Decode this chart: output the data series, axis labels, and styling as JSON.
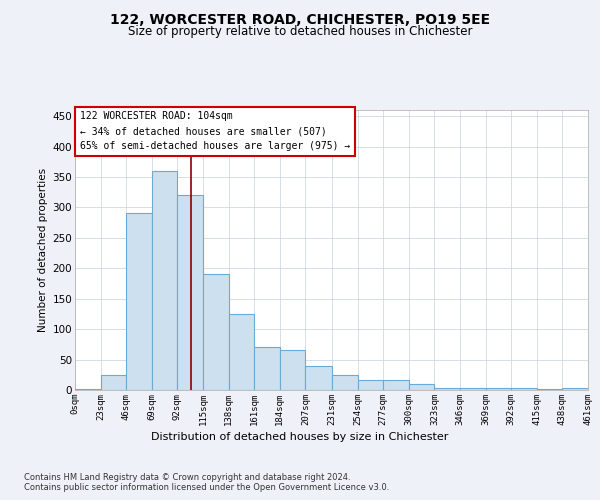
{
  "title": "122, WORCESTER ROAD, CHICHESTER, PO19 5EE",
  "subtitle": "Size of property relative to detached houses in Chichester",
  "xlabel": "Distribution of detached houses by size in Chichester",
  "ylabel": "Number of detached properties",
  "bin_edges": [
    0,
    23,
    46,
    69,
    92,
    115,
    138,
    161,
    184,
    207,
    231,
    254,
    277,
    300,
    323,
    346,
    369,
    392,
    415,
    438,
    461
  ],
  "bar_heights": [
    2,
    25,
    290,
    360,
    320,
    190,
    125,
    70,
    65,
    40,
    25,
    17,
    17,
    10,
    3,
    3,
    3,
    3,
    2,
    3
  ],
  "bar_color": "#cce0f0",
  "bar_edge_color": "#6aaad4",
  "vline_x": 104,
  "vline_color": "#8b0000",
  "annotation_text": "122 WORCESTER ROAD: 104sqm\n← 34% of detached houses are smaller (507)\n65% of semi-detached houses are larger (975) →",
  "annotation_box_color": "#ffffff",
  "annotation_box_edge_color": "#cc0000",
  "footer_text": "Contains HM Land Registry data © Crown copyright and database right 2024.\nContains public sector information licensed under the Open Government Licence v3.0.",
  "ylim": [
    0,
    460
  ],
  "yticks": [
    0,
    50,
    100,
    150,
    200,
    250,
    300,
    350,
    400,
    450
  ],
  "background_color": "#eef2f8",
  "plot_background_color": "#ffffff",
  "grid_color": "#c8d0dc"
}
